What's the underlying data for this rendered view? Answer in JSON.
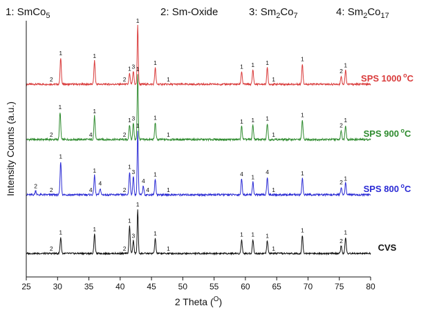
{
  "chart_data": {
    "type": "line",
    "title": "",
    "legend_items": [
      {
        "number": "1:",
        "formula": "SmCo",
        "sub": "5"
      },
      {
        "number": "2:",
        "formula": "Sm-Oxide",
        "sub": ""
      },
      {
        "number": "3:",
        "formula": "Sm",
        "sub": "2",
        "formula2": "Co",
        "sub2": "7"
      },
      {
        "number": "4:",
        "formula": "Sm",
        "sub": "2",
        "formula2": "Co",
        "sub2": "17"
      }
    ],
    "xlabel": "2 Theta",
    "xlabel_unit": "O",
    "ylabel": "Intensity Counts (a.u.)",
    "xlim": [
      25,
      80
    ],
    "x_ticks": [
      25,
      30,
      35,
      40,
      45,
      50,
      55,
      60,
      65,
      70,
      75,
      80
    ],
    "y_ticks_shown": false,
    "series": [
      {
        "name": "SPS 1000",
        "name_sup": "o",
        "name_unit": "C",
        "color": "#d93a3a",
        "peaks": [
          {
            "x": 30.5,
            "h": 0.45
          },
          {
            "x": 35.9,
            "h": 0.4
          },
          {
            "x": 41.5,
            "h": 0.18
          },
          {
            "x": 42.1,
            "h": 0.22
          },
          {
            "x": 42.8,
            "h": 1.0
          },
          {
            "x": 45.6,
            "h": 0.28
          },
          {
            "x": 59.4,
            "h": 0.22
          },
          {
            "x": 61.2,
            "h": 0.25
          },
          {
            "x": 63.5,
            "h": 0.28
          },
          {
            "x": 69.1,
            "h": 0.35
          },
          {
            "x": 75.3,
            "h": 0.14
          },
          {
            "x": 76.0,
            "h": 0.24
          }
        ],
        "labels": [
          {
            "x": 29.0,
            "text": "2"
          },
          {
            "x": 30.5,
            "text": "1"
          },
          {
            "x": 35.9,
            "text": "1"
          },
          {
            "x": 40.7,
            "text": "2"
          },
          {
            "x": 41.5,
            "text": "1"
          },
          {
            "x": 42.1,
            "text": "3"
          },
          {
            "x": 42.8,
            "text": "1"
          },
          {
            "x": 45.6,
            "text": "1"
          },
          {
            "x": 47.7,
            "text": "1"
          },
          {
            "x": 59.4,
            "text": "1"
          },
          {
            "x": 61.2,
            "text": "1"
          },
          {
            "x": 63.5,
            "text": "1"
          },
          {
            "x": 64.5,
            "text": "1"
          },
          {
            "x": 69.1,
            "text": "1"
          },
          {
            "x": 75.3,
            "text": "2"
          },
          {
            "x": 76.0,
            "text": "1"
          }
        ]
      },
      {
        "name": "SPS 900",
        "name_sup": "o",
        "name_unit": "C",
        "color": "#2e8b2e",
        "peaks": [
          {
            "x": 30.4,
            "h": 0.42
          },
          {
            "x": 35.9,
            "h": 0.36
          },
          {
            "x": 41.5,
            "h": 0.22
          },
          {
            "x": 42.1,
            "h": 0.25
          },
          {
            "x": 42.8,
            "h": 1.0
          },
          {
            "x": 45.6,
            "h": 0.26
          },
          {
            "x": 59.4,
            "h": 0.2
          },
          {
            "x": 61.2,
            "h": 0.22
          },
          {
            "x": 63.5,
            "h": 0.25
          },
          {
            "x": 69.1,
            "h": 0.3
          },
          {
            "x": 75.3,
            "h": 0.14
          },
          {
            "x": 76.0,
            "h": 0.22
          }
        ],
        "labels": [
          {
            "x": 29.0,
            "text": "2"
          },
          {
            "x": 30.4,
            "text": "1"
          },
          {
            "x": 35.3,
            "text": "4"
          },
          {
            "x": 35.9,
            "text": "1"
          },
          {
            "x": 40.7,
            "text": "2"
          },
          {
            "x": 41.5,
            "text": "1"
          },
          {
            "x": 42.1,
            "text": "3"
          },
          {
            "x": 42.8,
            "text": "1"
          },
          {
            "x": 45.6,
            "text": "1"
          },
          {
            "x": 47.7,
            "text": "1"
          },
          {
            "x": 59.4,
            "text": "1"
          },
          {
            "x": 61.2,
            "text": "1"
          },
          {
            "x": 63.5,
            "text": "1"
          },
          {
            "x": 64.5,
            "text": "1"
          },
          {
            "x": 69.1,
            "text": "1"
          },
          {
            "x": 75.3,
            "text": "2"
          },
          {
            "x": 76.0,
            "text": "1"
          }
        ]
      },
      {
        "name": "SPS 800",
        "name_sup": "o",
        "name_unit": "C",
        "color": "#2a2ad4",
        "peaks": [
          {
            "x": 26.5,
            "h": 0.06
          },
          {
            "x": 30.5,
            "h": 0.52
          },
          {
            "x": 35.9,
            "h": 0.3
          },
          {
            "x": 36.8,
            "h": 0.1
          },
          {
            "x": 41.5,
            "h": 0.36
          },
          {
            "x": 42.1,
            "h": 0.28
          },
          {
            "x": 42.8,
            "h": 1.0
          },
          {
            "x": 43.7,
            "h": 0.14
          },
          {
            "x": 45.6,
            "h": 0.24
          },
          {
            "x": 59.4,
            "h": 0.25
          },
          {
            "x": 61.2,
            "h": 0.2
          },
          {
            "x": 63.5,
            "h": 0.28
          },
          {
            "x": 69.1,
            "h": 0.26
          },
          {
            "x": 75.3,
            "h": 0.12
          },
          {
            "x": 76.0,
            "h": 0.18
          }
        ],
        "labels": [
          {
            "x": 26.5,
            "text": "2"
          },
          {
            "x": 29.0,
            "text": "2"
          },
          {
            "x": 30.5,
            "text": "1"
          },
          {
            "x": 35.3,
            "text": "4"
          },
          {
            "x": 35.9,
            "text": "1"
          },
          {
            "x": 36.8,
            "text": "4"
          },
          {
            "x": 40.7,
            "text": "2"
          },
          {
            "x": 41.5,
            "text": "1"
          },
          {
            "x": 42.1,
            "text": "3"
          },
          {
            "x": 42.8,
            "text": "1"
          },
          {
            "x": 43.7,
            "text": "4"
          },
          {
            "x": 44.4,
            "text": "4"
          },
          {
            "x": 45.6,
            "text": "1"
          },
          {
            "x": 47.7,
            "text": "1"
          },
          {
            "x": 59.4,
            "text": "4"
          },
          {
            "x": 61.2,
            "text": "1"
          },
          {
            "x": 63.5,
            "text": "4"
          },
          {
            "x": 64.5,
            "text": "1"
          },
          {
            "x": 69.1,
            "text": "1"
          },
          {
            "x": 75.3,
            "text": "2"
          },
          {
            "x": 76.0,
            "text": "1"
          }
        ]
      },
      {
        "name": "CVS",
        "name_sup": "",
        "name_unit": "",
        "color": "#111111",
        "peaks": [
          {
            "x": 30.5,
            "h": 0.3
          },
          {
            "x": 35.9,
            "h": 0.36
          },
          {
            "x": 41.5,
            "h": 0.52
          },
          {
            "x": 42.1,
            "h": 0.24
          },
          {
            "x": 42.8,
            "h": 0.82
          },
          {
            "x": 45.6,
            "h": 0.28
          },
          {
            "x": 59.4,
            "h": 0.26
          },
          {
            "x": 61.2,
            "h": 0.26
          },
          {
            "x": 63.5,
            "h": 0.24
          },
          {
            "x": 69.1,
            "h": 0.34
          },
          {
            "x": 75.3,
            "h": 0.14
          },
          {
            "x": 76.0,
            "h": 0.3
          }
        ],
        "labels": [
          {
            "x": 29.0,
            "text": "2"
          },
          {
            "x": 30.5,
            "text": "1"
          },
          {
            "x": 35.9,
            "text": "1"
          },
          {
            "x": 40.7,
            "text": "2"
          },
          {
            "x": 41.5,
            "text": "1"
          },
          {
            "x": 42.1,
            "text": "3"
          },
          {
            "x": 42.8,
            "text": "1"
          },
          {
            "x": 45.6,
            "text": "1"
          },
          {
            "x": 47.7,
            "text": "1"
          },
          {
            "x": 59.4,
            "text": "1"
          },
          {
            "x": 61.2,
            "text": "1"
          },
          {
            "x": 63.5,
            "text": "1"
          },
          {
            "x": 64.5,
            "text": "1"
          },
          {
            "x": 69.1,
            "text": "1"
          },
          {
            "x": 75.3,
            "text": "2"
          },
          {
            "x": 76.0,
            "text": "1"
          }
        ]
      }
    ]
  }
}
